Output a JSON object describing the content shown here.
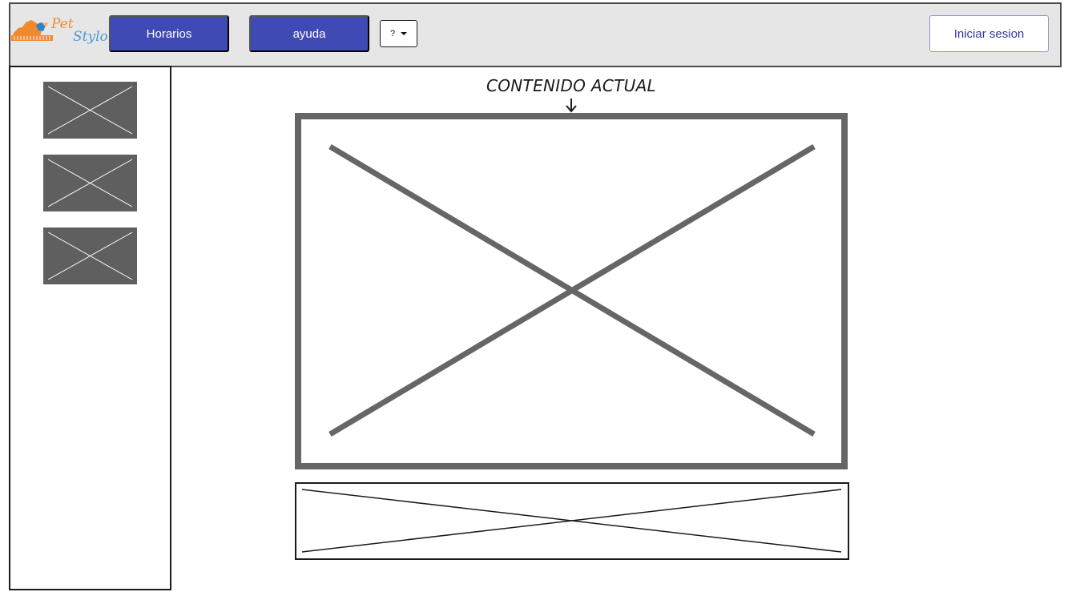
{
  "header": {
    "logo": {
      "name": "Pet Stylo logo",
      "text_pet": "Pet",
      "text_stylo": "Stylo",
      "colors": {
        "orange": "#f08a2c",
        "blue": "#4a9ad8"
      }
    },
    "nav": {
      "horarios_label": "Horarios",
      "ayuda_label": "ayuda"
    },
    "select": {
      "value": "?",
      "icon": "chevron-down-icon"
    },
    "login_label": "Iniciar sesion"
  },
  "main": {
    "content_label": "CONTENIDO ACTUAL",
    "arrow_icon": "arrow-down-icon"
  },
  "colors": {
    "header_bg": "#e6e6e6",
    "button_bg": "#3f4ab4",
    "placeholder_gray": "#5f5f5f",
    "border_dark": "#1a1a1a"
  }
}
